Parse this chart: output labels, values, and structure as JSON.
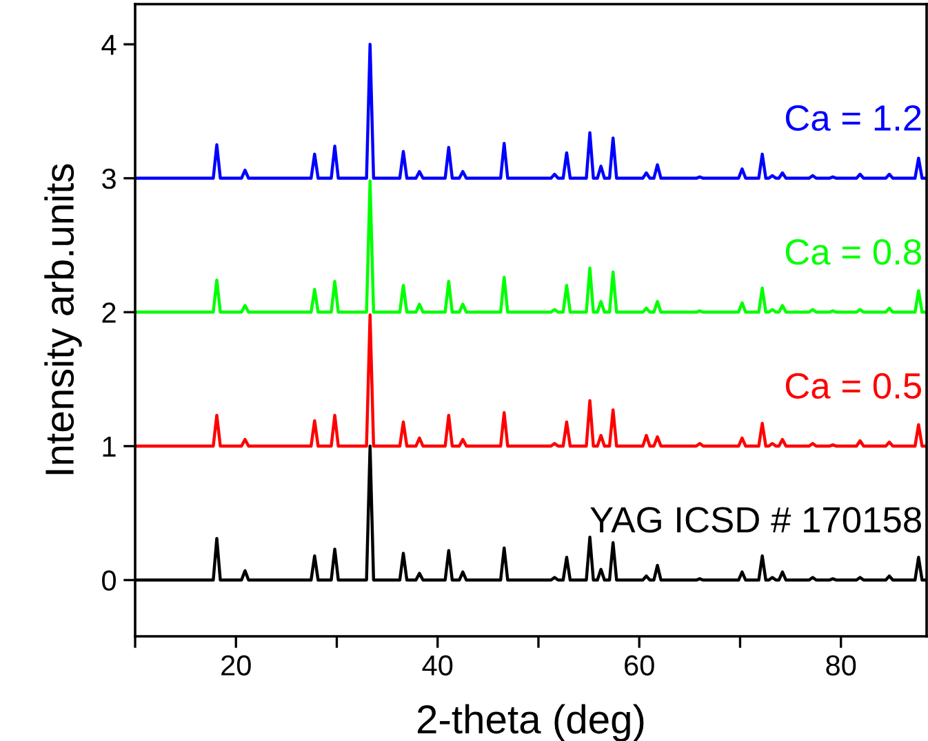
{
  "chart_data": {
    "type": "line",
    "xlabel": "2-theta (deg)",
    "ylabel": "Intensity arb.units",
    "xlim": [
      10,
      88.5
    ],
    "ylim": [
      -0.42,
      4.3
    ],
    "xticks": [
      {
        "value": 10,
        "label": null
      },
      20,
      {
        "value": 30,
        "label": null
      },
      40,
      {
        "value": 50,
        "label": null
      },
      60,
      {
        "value": 70,
        "label": null
      },
      80
    ],
    "yticks": [
      0,
      1,
      2,
      3,
      4
    ],
    "grid": false,
    "legend": false,
    "marker": "none",
    "line_style": "solid",
    "x": [
      10,
      17.75,
      18.1,
      18.45,
      20.55,
      20.9,
      21.25,
      27.45,
      27.8,
      28.15,
      29.45,
      29.8,
      30.15,
      32.95,
      33.3,
      33.65,
      36.25,
      36.6,
      36.95,
      37.85,
      38.2,
      38.55,
      40.75,
      41.1,
      41.45,
      42.15,
      42.5,
      42.85,
      46.25,
      46.6,
      46.95,
      51.25,
      51.6,
      51.95,
      52.45,
      52.8,
      53.15,
      54.75,
      55.1,
      55.45,
      55.85,
      56.2,
      56.55,
      57.05,
      57.4,
      57.75,
      60.35,
      60.7,
      61.05,
      61.45,
      61.8,
      62.15,
      65.65,
      66.0,
      66.35,
      69.85,
      70.2,
      70.55,
      71.85,
      72.2,
      72.55,
      72.85,
      73.2,
      73.55,
      73.85,
      74.2,
      74.55,
      76.85,
      77.2,
      77.55,
      78.85,
      79.2,
      79.55,
      81.55,
      81.9,
      82.25,
      84.45,
      84.8,
      85.15,
      87.35,
      87.7,
      88.05,
      88.5
    ],
    "series": [
      {
        "name": "YAG ICSD # 170158",
        "color": "#000000",
        "values": [
          0,
          0,
          0.31,
          0,
          0,
          0.07,
          0,
          0,
          0.18,
          0,
          0,
          0.23,
          0,
          0,
          1.0,
          0,
          0,
          0.2,
          0,
          0,
          0.05,
          0,
          0,
          0.22,
          0,
          0,
          0.06,
          0,
          0,
          0.24,
          0,
          0,
          0.02,
          0,
          0,
          0.17,
          0,
          0,
          0.32,
          0,
          0,
          0.08,
          0,
          0,
          0.28,
          0,
          0,
          0.03,
          0,
          0,
          0.11,
          0,
          0,
          0.01,
          0,
          0,
          0.06,
          0,
          0,
          0.18,
          0,
          0,
          0.02,
          0,
          0,
          0.06,
          0,
          0,
          0.02,
          0,
          0,
          0.01,
          0,
          0,
          0.02,
          0,
          0,
          0.03,
          0,
          0,
          0.17,
          0,
          0
        ]
      },
      {
        "name": "Ca = 0.5",
        "color": "#ff0000",
        "values": [
          1,
          1,
          1.23,
          1,
          1,
          1.05,
          1,
          1,
          1.19,
          1,
          1,
          1.23,
          1,
          1,
          1.98,
          1,
          1,
          1.18,
          1,
          1,
          1.06,
          1,
          1,
          1.23,
          1,
          1,
          1.05,
          1,
          1,
          1.25,
          1,
          1,
          1.02,
          1,
          1,
          1.18,
          1,
          1,
          1.34,
          1,
          1,
          1.08,
          1,
          1,
          1.27,
          1,
          1,
          1.08,
          1,
          1,
          1.07,
          1,
          1,
          1.02,
          1,
          1,
          1.06,
          1,
          1,
          1.17,
          1,
          1,
          1.02,
          1,
          1,
          1.05,
          1,
          1,
          1.02,
          1,
          1,
          1.01,
          1,
          1,
          1.04,
          1,
          1,
          1.03,
          1,
          1,
          1.16,
          1,
          1
        ]
      },
      {
        "name": "Ca = 0.8",
        "color": "#00ff00",
        "values": [
          2,
          2,
          2.24,
          2,
          2,
          2.05,
          2,
          2,
          2.17,
          2,
          2,
          2.23,
          2,
          2,
          2.98,
          2,
          2,
          2.2,
          2,
          2,
          2.06,
          2,
          2,
          2.23,
          2,
          2,
          2.06,
          2,
          2,
          2.26,
          2,
          2,
          2.02,
          2,
          2,
          2.2,
          2,
          2,
          2.33,
          2,
          2,
          2.08,
          2,
          2,
          2.3,
          2,
          2,
          2.03,
          2,
          2,
          2.08,
          2,
          2,
          2.01,
          2,
          2,
          2.07,
          2,
          2,
          2.18,
          2,
          2,
          2.02,
          2,
          2,
          2.05,
          2,
          2,
          2.02,
          2,
          2,
          2.01,
          2,
          2,
          2.02,
          2,
          2,
          2.03,
          2,
          2,
          2.16,
          2,
          2
        ]
      },
      {
        "name": "Ca = 1.2",
        "color": "#0000ff",
        "values": [
          3,
          3,
          3.25,
          3,
          3,
          3.06,
          3,
          3,
          3.18,
          3,
          3,
          3.24,
          3,
          3,
          4.0,
          3,
          3,
          3.2,
          3,
          3,
          3.05,
          3,
          3,
          3.23,
          3,
          3,
          3.05,
          3,
          3,
          3.26,
          3,
          3,
          3.03,
          3,
          3,
          3.19,
          3,
          3,
          3.34,
          3,
          3,
          3.09,
          3,
          3,
          3.3,
          3,
          3,
          3.04,
          3,
          3,
          3.1,
          3,
          3,
          3.01,
          3,
          3,
          3.07,
          3,
          3,
          3.18,
          3,
          3,
          3.02,
          3,
          3,
          3.04,
          3,
          3,
          3.02,
          3,
          3,
          3.01,
          3,
          3,
          3.03,
          3,
          3,
          3.03,
          3,
          3,
          3.15,
          3,
          3
        ]
      }
    ]
  }
}
